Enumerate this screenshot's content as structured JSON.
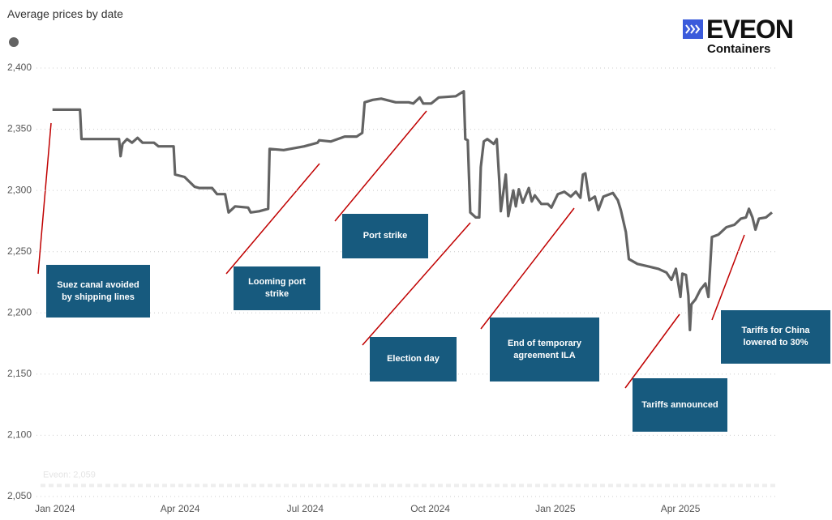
{
  "chart_data": {
    "type": "line",
    "title": "Average prices by date",
    "color": "#636363",
    "grid": true,
    "ylim": [
      2050,
      2400
    ],
    "yticks": [
      {
        "value": 2050,
        "label": "2,050"
      },
      {
        "value": 2100,
        "label": "2,100"
      },
      {
        "value": 2150,
        "label": "2,150"
      },
      {
        "value": 2200,
        "label": "2,200"
      },
      {
        "value": 2250,
        "label": "2,250"
      },
      {
        "value": 2300,
        "label": "2,300"
      },
      {
        "value": 2350,
        "label": "2,350"
      },
      {
        "value": 2400,
        "label": "2,400"
      }
    ],
    "xlim": [
      2023.963,
      2025.446
    ],
    "xticks": [
      {
        "value": 2024,
        "label": "Jan 2024"
      },
      {
        "value": 2024.25,
        "label": "Apr 2024"
      },
      {
        "value": 2024.5,
        "label": "Jul 2024"
      },
      {
        "value": 2024.75,
        "label": "Oct 2024"
      },
      {
        "value": 2025,
        "label": "Jan 2025"
      },
      {
        "value": 2025.25,
        "label": "Apr 2025"
      }
    ],
    "x": [
      2023.995,
      2024.05,
      2024.053,
      2024.128,
      2024.131,
      2024.135,
      2024.144,
      2024.154,
      2024.165,
      2024.175,
      2024.198,
      2024.207,
      2024.237,
      2024.24,
      2024.259,
      2024.279,
      2024.288,
      2024.314,
      2024.324,
      2024.34,
      2024.347,
      2024.36,
      2024.386,
      2024.391,
      2024.408,
      2024.426,
      2024.429,
      2024.457,
      2024.498,
      2024.525,
      2024.528,
      2024.551,
      2024.579,
      2024.603,
      2024.614,
      2024.619,
      2024.635,
      2024.652,
      2024.681,
      2024.707,
      2024.716,
      2024.729,
      2024.736,
      2024.752,
      2024.767,
      2024.801,
      2024.809,
      2024.817,
      2024.82,
      2024.825,
      2024.83,
      2024.841,
      2024.848,
      2024.851,
      2024.857,
      2024.864,
      2024.877,
      2024.883,
      2024.888,
      2024.891,
      2024.901,
      2024.906,
      2024.916,
      2024.921,
      2024.927,
      2024.935,
      2024.947,
      2024.953,
      2024.959,
      2024.972,
      2024.985,
      2024.992,
      2025.005,
      2025.018,
      2025.031,
      2025.041,
      2025.05,
      2025.055,
      2025.06,
      2025.068,
      2025.079,
      2025.086,
      2025.096,
      2025.115,
      2025.125,
      2025.131,
      2025.141,
      2025.147,
      2025.164,
      2025.186,
      2025.206,
      2025.222,
      2025.232,
      2025.241,
      2025.25,
      2025.254,
      2025.261,
      2025.266,
      2025.269,
      2025.272,
      2025.28,
      2025.29,
      2025.3,
      2025.306,
      2025.313,
      2025.326,
      2025.342,
      2025.358,
      2025.371,
      2025.381,
      2025.387,
      2025.394,
      2025.4,
      2025.407,
      2025.421,
      2025.433
    ],
    "values": [
      2366,
      2366,
      2342,
      2342,
      2328,
      2338,
      2342,
      2339,
      2343,
      2339,
      2339,
      2336,
      2336,
      2313,
      2311,
      2303,
      2302,
      2302,
      2297,
      2297,
      2282,
      2287,
      2286,
      2282,
      2283,
      2285,
      2334,
      2333,
      2336,
      2339,
      2341,
      2340,
      2344,
      2344,
      2347,
      2372,
      2374,
      2375,
      2372,
      2372,
      2371,
      2376,
      2371,
      2371,
      2376,
      2377,
      2379,
      2381,
      2342,
      2341,
      2282,
      2278,
      2278,
      2319,
      2340,
      2342,
      2338,
      2342,
      2308,
      2283,
      2313,
      2279,
      2300,
      2287,
      2301,
      2290,
      2302,
      2291,
      2296,
      2289,
      2289,
      2286,
      2297,
      2299,
      2295,
      2299,
      2294,
      2313,
      2314,
      2292,
      2295,
      2284,
      2295,
      2298,
      2292,
      2284,
      2266,
      2244,
      2240,
      2238,
      2236,
      2233,
      2227,
      2236,
      2213,
      2232,
      2231,
      2214,
      2186,
      2207,
      2211,
      2219,
      2224,
      2213,
      2262,
      2264,
      2270,
      2272,
      2277,
      2278,
      2285,
      2278,
      2268,
      2277,
      2278,
      2282
    ],
    "reference_line": {
      "value": 2059,
      "label": "Eveon: 2,059"
    },
    "annotations": [
      {
        "text": "Suez canal avoided by shipping lines"
      },
      {
        "text": "Looming port strike"
      },
      {
        "text": "Port strike"
      },
      {
        "text": "Election day"
      },
      {
        "text": "End of temporary agreement ILA"
      },
      {
        "text": "Tariffs announced"
      },
      {
        "text": "Tariffs for China lowered to 30%"
      }
    ]
  },
  "logo": {
    "name": "EVEON",
    "subtitle": "Containers"
  }
}
